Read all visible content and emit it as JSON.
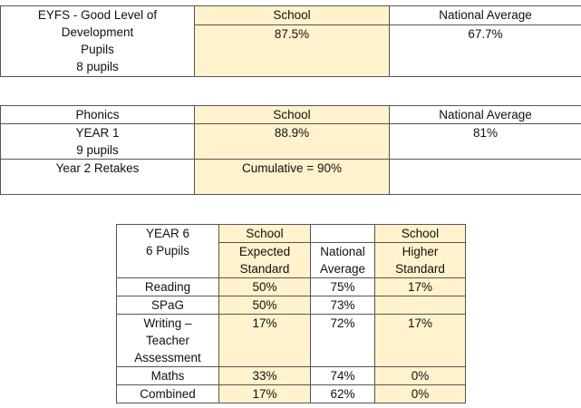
{
  "eyfs": {
    "label_lines": [
      "EYFS - Good Level of",
      "Development",
      "Pupils",
      "8 pupils"
    ],
    "school_header": "School",
    "national_header": "National Average",
    "school_value": "87.5%",
    "national_value": "67.7%"
  },
  "phonics": {
    "label": "Phonics",
    "school_header": "School",
    "national_header": "National Average",
    "year1_lines": [
      "YEAR 1",
      "9 pupils"
    ],
    "year1_school": "88.9%",
    "year1_national": "81%",
    "retakes_label": "Year 2 Retakes",
    "retakes_school": "Cumulative = 90%"
  },
  "year6": {
    "label_lines": [
      "YEAR 6",
      "6 Pupils"
    ],
    "school_expected_top": "School",
    "school_expected_lines": [
      "Expected",
      "Standard"
    ],
    "national_lines": [
      "National",
      "Average"
    ],
    "school_higher_top": "School",
    "school_higher_lines": [
      "Higher",
      "Standard"
    ],
    "rows": [
      {
        "subject_lines": [
          "Reading"
        ],
        "expected": "50%",
        "national": "75%",
        "higher": "17%"
      },
      {
        "subject_lines": [
          "SPaG"
        ],
        "expected": "50%",
        "national": "73%",
        "higher": ""
      },
      {
        "subject_lines": [
          "Writing –",
          "Teacher",
          "Assessment"
        ],
        "expected": "17%",
        "national": "72%",
        "higher": "17%"
      },
      {
        "subject_lines": [
          "Maths"
        ],
        "expected": "33%",
        "national": "74%",
        "higher": "0%"
      },
      {
        "subject_lines": [
          "Combined"
        ],
        "expected": "17%",
        "national": "62%",
        "higher": "0%"
      }
    ]
  },
  "colors": {
    "school_highlight": "#fff2cc",
    "border": "#555555"
  }
}
